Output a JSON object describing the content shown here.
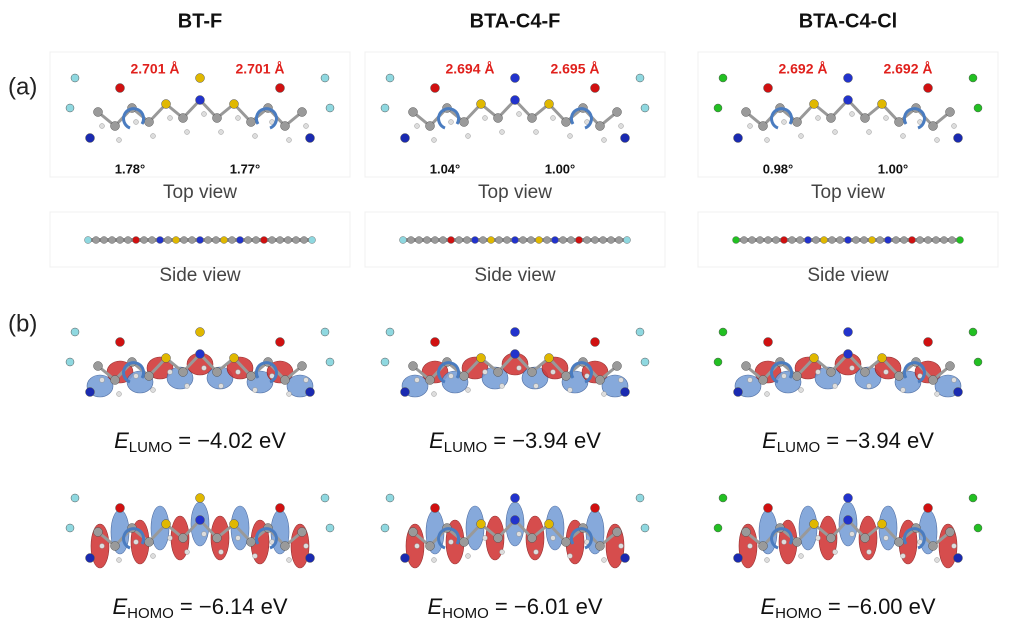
{
  "panel_labels": [
    "(a)",
    "(b)"
  ],
  "columns": [
    {
      "name": "BT-F",
      "distances": [
        "2.701 Å",
        "2.701 Å"
      ],
      "angles": [
        "1.78°",
        "1.77°"
      ],
      "top_view": "Top view",
      "side_view": "Side view",
      "lumo": {
        "symbol": "E",
        "subscript": "LUMO",
        "value": " = −4.02 eV"
      },
      "homo": {
        "symbol": "E",
        "subscript": "HOMO",
        "value": " = −6.14 eV"
      }
    },
    {
      "name": "BTA-C4-F",
      "distances": [
        "2.694 Å",
        "2.695 Å"
      ],
      "angles": [
        "1.04°",
        "1.00°"
      ],
      "top_view": "Top view",
      "side_view": "Side view",
      "lumo": {
        "symbol": "E",
        "subscript": "LUMO",
        "value": " = −3.94 eV"
      },
      "homo": {
        "symbol": "E",
        "subscript": "HOMO",
        "value": " = −6.01 eV"
      }
    },
    {
      "name": "BTA-C4-Cl",
      "distances": [
        "2.692 Å",
        "2.692 Å"
      ],
      "angles": [
        "0.98°",
        "1.00°"
      ],
      "top_view": "Top view",
      "side_view": "Side view",
      "lumo": {
        "symbol": "E",
        "subscript": "LUMO",
        "value": " = −3.94 eV"
      },
      "homo": {
        "symbol": "E",
        "subscript": "HOMO",
        "value": " = −6.00 eV"
      }
    }
  ]
}
